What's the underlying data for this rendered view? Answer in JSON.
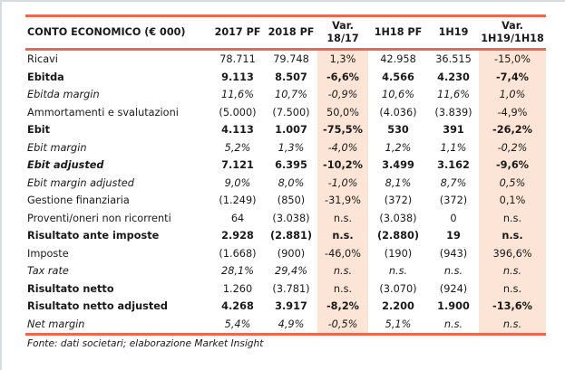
{
  "table": {
    "headers": [
      "CONTO ECONOMICO (€ 000)",
      "2017 PF",
      "2018 PF",
      "Var.\n18/17",
      "1H18 PF",
      "1H19",
      "Var.\n1H19/1H18"
    ],
    "header_var1": [
      "Var.",
      "18/17"
    ],
    "header_var2": [
      "Var.",
      "1H19/1H18"
    ],
    "rows": [
      {
        "label": "Ricavi",
        "style": "normal",
        "values": [
          "78.711",
          "79.748",
          "1,3%",
          "42.958",
          "36.515",
          "-15,0%"
        ]
      },
      {
        "label": "Ebitda",
        "style": "bold",
        "values": [
          "9.113",
          "8.507",
          "-6,6%",
          "4.566",
          "4.230",
          "-7,4%"
        ]
      },
      {
        "label": "Ebitda margin",
        "style": "italic",
        "values": [
          "11,6%",
          "10,7%",
          "-0,9%",
          "10,6%",
          "11,6%",
          "1,0%"
        ]
      },
      {
        "label": "Ammortamenti e svalutazioni",
        "style": "normal",
        "values": [
          "(5.000)",
          "(7.500)",
          "50,0%",
          "(4.036)",
          "(3.839)",
          "-4,9%"
        ]
      },
      {
        "label": "Ebit",
        "style": "bold",
        "values": [
          "4.113",
          "1.007",
          "-75,5%",
          "530",
          "391",
          "-26,2%"
        ]
      },
      {
        "label": "Ebit margin",
        "style": "italic",
        "values": [
          "5,2%",
          "1,3%",
          "-4,0%",
          "1,2%",
          "1,1%",
          "-0,2%"
        ]
      },
      {
        "label": "Ebit adjusted",
        "style": "bolditalic",
        "values": [
          "7.121",
          "6.395",
          "-10,2%",
          "3.499",
          "3.162",
          "-9,6%"
        ]
      },
      {
        "label": "Ebit margin adjusted",
        "style": "italic",
        "values": [
          "9,0%",
          "8,0%",
          "-1,0%",
          "8,1%",
          "8,7%",
          "0,5%"
        ]
      },
      {
        "label": "Gestione finanziaria",
        "style": "normal",
        "values": [
          "(1.249)",
          "(850)",
          "-31,9%",
          "(372)",
          "(372)",
          "0,1%"
        ]
      },
      {
        "label": "Proventi/oneri non ricorrenti",
        "style": "normal",
        "values": [
          "64",
          "(3.038)",
          "n.s.",
          "(3.038)",
          "0",
          "n.s."
        ]
      },
      {
        "label": "Risultato ante imposte",
        "style": "bold",
        "values": [
          "2.928",
          "(2.881)",
          "n.s.",
          "(2.880)",
          "19",
          "n.s."
        ]
      },
      {
        "label": "Imposte",
        "style": "normal",
        "values": [
          "(1.668)",
          "(900)",
          "-46,0%",
          "(190)",
          "(943)",
          "396,6%"
        ]
      },
      {
        "label": "Tax rate",
        "style": "italic",
        "values": [
          "28,1%",
          "29,4%",
          "n.s.",
          "n.s.",
          "n.s.",
          "n.s."
        ]
      },
      {
        "label": "Risultato netto",
        "style": "boldlabel",
        "values": [
          "1.260",
          "(3.781)",
          "n.s.",
          "(3.070)",
          "(924)",
          "n.s."
        ]
      },
      {
        "label": "Risultato netto adjusted",
        "style": "bold",
        "values": [
          "4.268",
          "3.917",
          "-8,2%",
          "2.200",
          "1.900",
          "-13,6%"
        ]
      },
      {
        "label": "Net margin",
        "style": "italic",
        "values": [
          "5,4%",
          "4,9%",
          "-0,5%",
          "5,1%",
          "n.s.",
          "n.s."
        ]
      }
    ]
  },
  "source": "Fonte: dati societari; elaborazione Market Insight",
  "colors": {
    "accent": "#f0654d",
    "highlight": "#fce5d6"
  }
}
